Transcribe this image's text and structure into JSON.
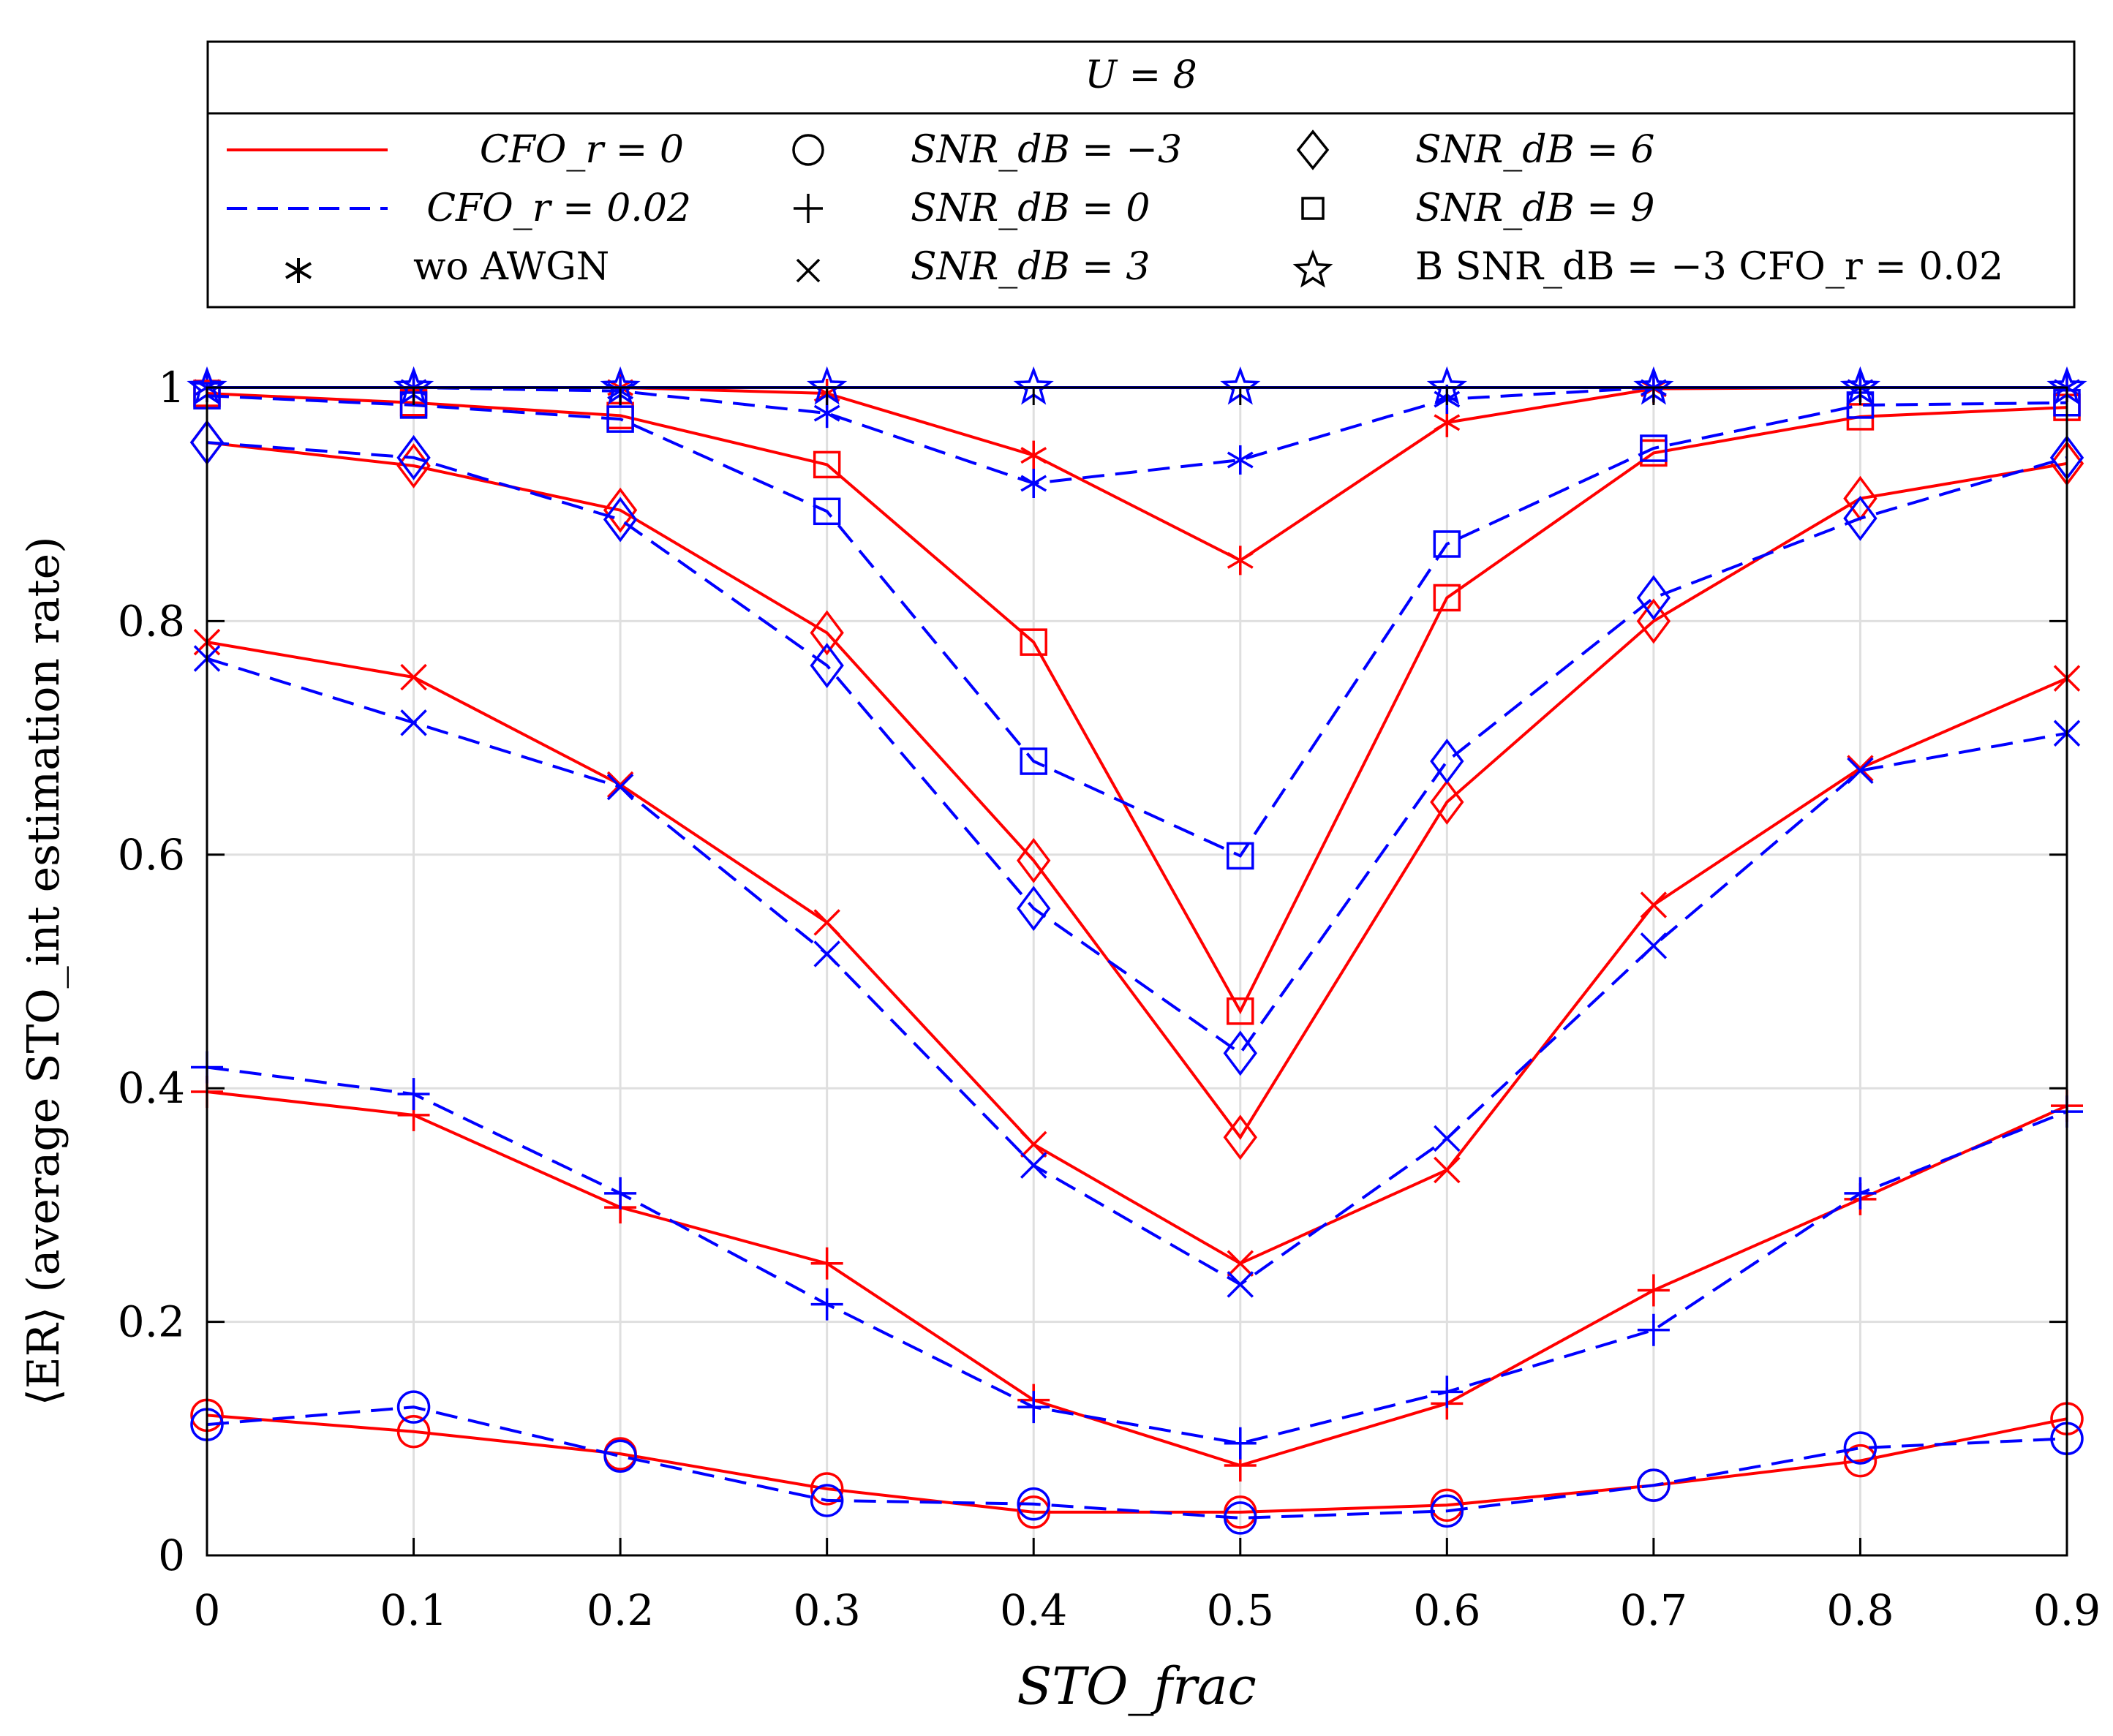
{
  "chart_data": {
    "type": "line",
    "title": "",
    "xlabel": "STO_frac",
    "ylabel": "⟨ER⟩ (average STO_int estimation rate)",
    "x": [
      0,
      0.1,
      0.2,
      0.3,
      0.4,
      0.5,
      0.6,
      0.7,
      0.8,
      0.9
    ],
    "xlim": [
      0,
      0.9
    ],
    "ylim": [
      0,
      1
    ],
    "xticks": [
      "0",
      "0.1",
      "0.2",
      "0.3",
      "0.4",
      "0.5",
      "0.6",
      "0.7",
      "0.8",
      "0.9"
    ],
    "yticks": [
      "0",
      "0.2",
      "0.4",
      "0.6",
      "0.8",
      "1"
    ],
    "grid": true,
    "legend": {
      "placement": "top",
      "header": "U = 8",
      "entries": [
        {
          "symbol": "line-solid-red",
          "label": "CFO_r = 0"
        },
        {
          "symbol": "circle",
          "label": "SNR_dB = −3"
        },
        {
          "symbol": "diamond",
          "label": "SNR_dB = 6"
        },
        {
          "symbol": "line-dashed-blue",
          "label": "CFO_r = 0.02"
        },
        {
          "symbol": "plus",
          "label": "SNR_dB = 0"
        },
        {
          "symbol": "square",
          "label": "SNR_dB = 9"
        },
        {
          "symbol": "asterisk",
          "label": "wo AWGN"
        },
        {
          "symbol": "cross",
          "label": "SNR_dB = 3"
        },
        {
          "symbol": "star",
          "label": "B SNR_dB = −3 CFO_r = 0.02"
        }
      ]
    },
    "colors": {
      "cfo0": "#ff0000",
      "cfo002": "#0000ff",
      "grid": "#dfdfdf"
    },
    "series": [
      {
        "name": "wo AWGN, CFO_r = 0",
        "marker": "asterisk",
        "color": "#ff0000",
        "dash": false,
        "values": [
          1.0,
          1.0,
          1.0,
          0.995,
          0.942,
          0.852,
          0.97,
          0.999,
          1.0,
          1.0
        ]
      },
      {
        "name": "wo AWGN, CFO_r = 0.02",
        "marker": "asterisk",
        "color": "#0000ff",
        "dash": true,
        "values": [
          1.0,
          1.0,
          0.997,
          0.978,
          0.918,
          0.938,
          0.99,
          1.0,
          1.0,
          1.0
        ]
      },
      {
        "name": "SNR_dB = 9, CFO_r = 0",
        "marker": "square",
        "color": "#ff0000",
        "dash": false,
        "values": [
          0.995,
          0.987,
          0.976,
          0.934,
          0.782,
          0.466,
          0.82,
          0.944,
          0.975,
          0.983
        ]
      },
      {
        "name": "SNR_dB = 9, CFO_r = 0.02",
        "marker": "square",
        "color": "#0000ff",
        "dash": true,
        "values": [
          0.993,
          0.985,
          0.973,
          0.894,
          0.68,
          0.599,
          0.866,
          0.948,
          0.985,
          0.987
        ]
      },
      {
        "name": "SNR_dB = 6, CFO_r = 0",
        "marker": "diamond",
        "color": "#ff0000",
        "dash": false,
        "values": [
          0.953,
          0.933,
          0.895,
          0.79,
          0.595,
          0.358,
          0.645,
          0.8,
          0.905,
          0.935
        ]
      },
      {
        "name": "SNR_dB = 6, CFO_r = 0.02",
        "marker": "diamond",
        "color": "#0000ff",
        "dash": true,
        "values": [
          0.953,
          0.94,
          0.887,
          0.762,
          0.554,
          0.43,
          0.68,
          0.82,
          0.888,
          0.94
        ]
      },
      {
        "name": "SNR_dB = 3, CFO_r = 0",
        "marker": "cross",
        "color": "#ff0000",
        "dash": false,
        "values": [
          0.782,
          0.752,
          0.66,
          0.542,
          0.352,
          0.25,
          0.33,
          0.557,
          0.674,
          0.751
        ]
      },
      {
        "name": "SNR_dB = 3, CFO_r = 0.02",
        "marker": "cross",
        "color": "#0000ff",
        "dash": true,
        "values": [
          0.768,
          0.713,
          0.658,
          0.515,
          0.334,
          0.232,
          0.357,
          0.522,
          0.672,
          0.704
        ]
      },
      {
        "name": "SNR_dB = 0, CFO_r = 0",
        "marker": "plus",
        "color": "#ff0000",
        "dash": false,
        "values": [
          0.397,
          0.377,
          0.298,
          0.25,
          0.133,
          0.077,
          0.13,
          0.227,
          0.305,
          0.385
        ]
      },
      {
        "name": "SNR_dB = 0, CFO_r = 0.02",
        "marker": "plus",
        "color": "#0000ff",
        "dash": true,
        "values": [
          0.418,
          0.395,
          0.31,
          0.215,
          0.127,
          0.096,
          0.14,
          0.193,
          0.31,
          0.38
        ]
      },
      {
        "name": "SNR_dB = −3, CFO_r = 0",
        "marker": "circle",
        "color": "#ff0000",
        "dash": false,
        "values": [
          0.12,
          0.106,
          0.087,
          0.057,
          0.037,
          0.037,
          0.043,
          0.06,
          0.081,
          0.117
        ]
      },
      {
        "name": "SNR_dB = −3, CFO_r = 0.02",
        "marker": "circle",
        "color": "#0000ff",
        "dash": true,
        "values": [
          0.112,
          0.127,
          0.085,
          0.047,
          0.044,
          0.032,
          0.038,
          0.06,
          0.092,
          0.1
        ]
      },
      {
        "name": "B SNR_dB = −3 CFO_r = 0.02",
        "marker": "star",
        "color": "#0000ff",
        "dash": false,
        "values": [
          1.0,
          1.0,
          1.0,
          1.0,
          1.0,
          1.0,
          1.0,
          1.0,
          1.0,
          1.0
        ]
      }
    ]
  }
}
